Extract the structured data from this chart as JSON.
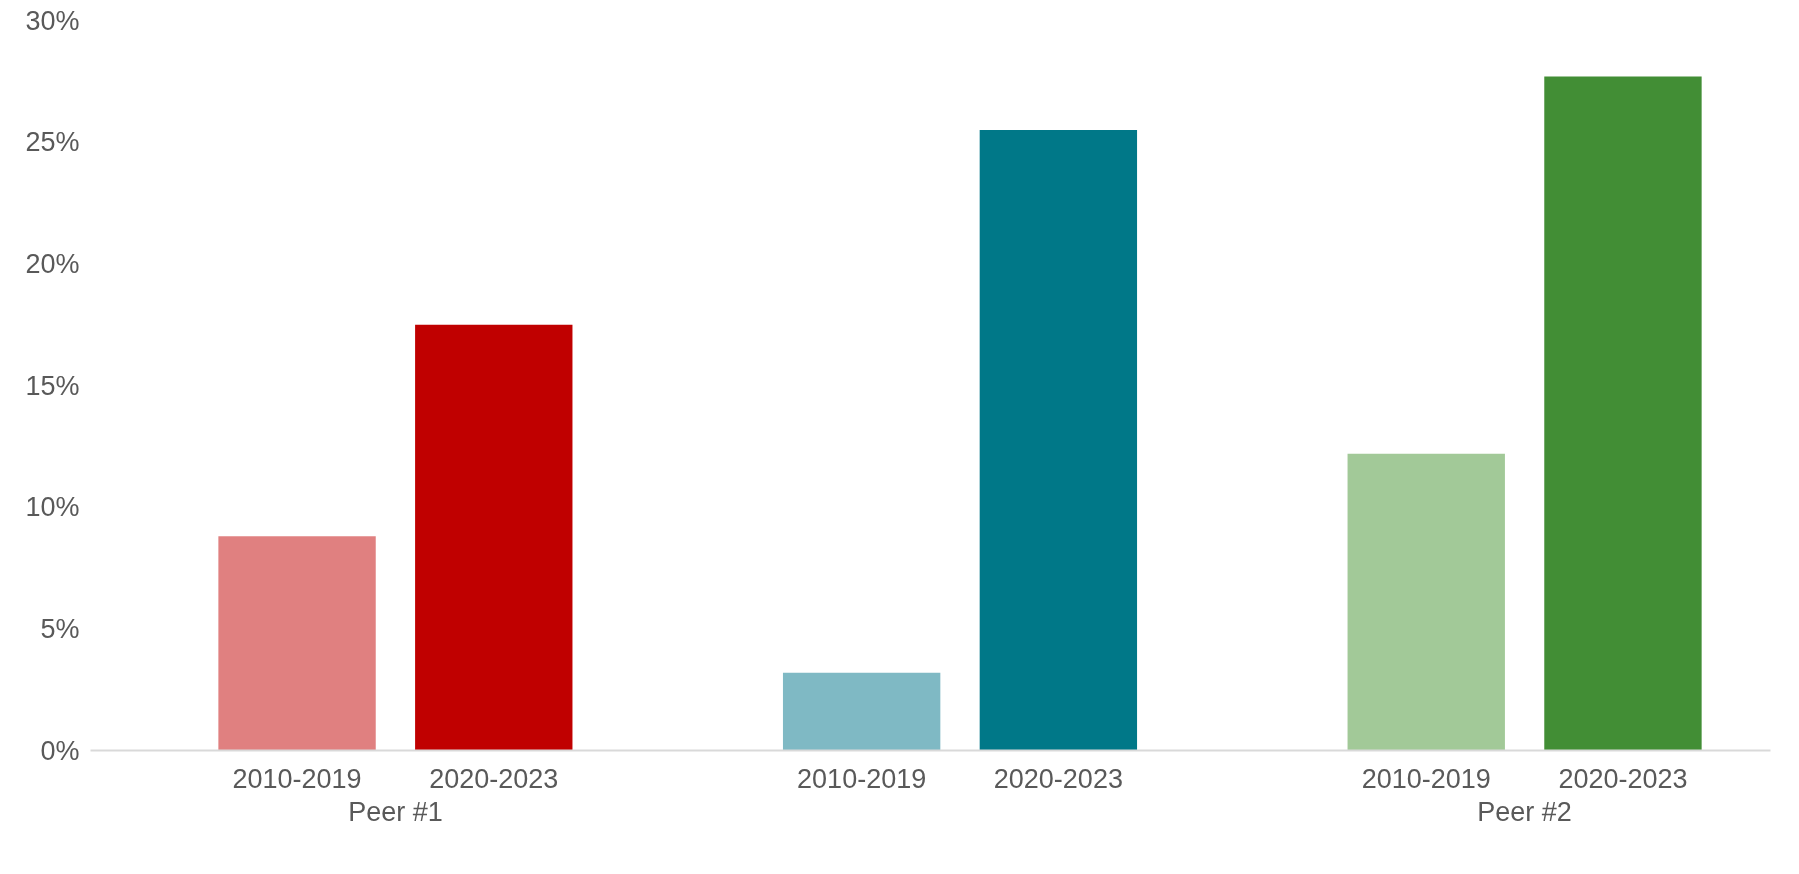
{
  "chart_data": {
    "type": "bar",
    "categories": [
      "2010-2019",
      "2020-2023",
      "2010-2019",
      "2020-2023",
      "2010-2019",
      "2020-2023"
    ],
    "values": [
      8.8,
      17.5,
      3.2,
      25.5,
      12.2,
      27.7
    ],
    "colors": [
      "#e08080",
      "#c00000",
      "#7fb9c4",
      "#007888",
      "#a2c998",
      "#428e35"
    ],
    "annotations": [
      "Peer #1",
      null,
      "Peer #2"
    ],
    "ylim": [
      0,
      30
    ],
    "yticks": [
      {
        "value": 0,
        "label": "0%"
      },
      {
        "value": 5,
        "label": "5%"
      },
      {
        "value": 10,
        "label": "10%"
      },
      {
        "value": 15,
        "label": "15%"
      },
      {
        "value": 20,
        "label": "20%"
      },
      {
        "value": 25,
        "label": "25%"
      },
      {
        "value": 30,
        "label": "30%"
      }
    ],
    "grid": false
  }
}
